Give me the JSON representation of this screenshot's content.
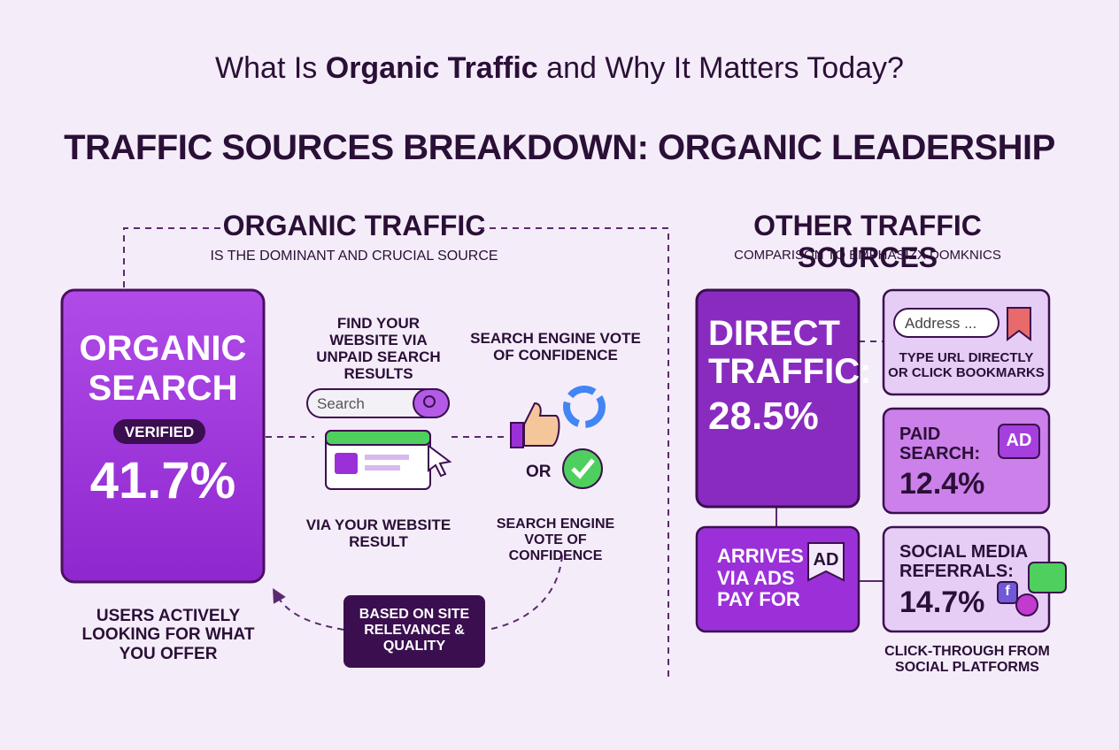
{
  "header": {
    "question_start": "What Is ",
    "question_bold": "Organic Traffic",
    "question_end": " and Why It Matters Today?",
    "title": "TRAFFIC SOURCES BREAKDOWN: ORGANIC LEADERSHIP"
  },
  "organic": {
    "heading": "ORGANIC TRAFFIC",
    "subheading": "IS THE DOMINANT AND CRUCIAL SOURCE",
    "card": {
      "label": "ORGANIC SEARCH",
      "badge": "VERIFIED",
      "value": "41.7%"
    },
    "caption": "USERS ACTIVELY LOOKING FOR WHAT YOU OFFER",
    "search_placeholder": "Search",
    "steps": [
      "FIND YOUR WEBSITE VIA UNPAID SEARCH RESULTS",
      "SEARCH ENGINE VOTE OF CONFIDENCE",
      "VIA YOUR WEBSITE RESULT",
      "SEARCH ENGINE VOTE OF CONFIDENCE"
    ],
    "or": "OR",
    "basis": "BASED ON SITE RELEVANCE & QUALITY"
  },
  "other": {
    "heading": "OTHER TRAFFIC SOURCES",
    "subheading": "COMPARISON TO EMPHASIZX DOMKNICS",
    "direct": {
      "label": "DIRECT TRAFFIC:",
      "value": "28.5%"
    },
    "address": {
      "placeholder": "Address ...",
      "caption": "TYPE URL DIRECTLY OR CLICK BOOKMARKS"
    },
    "paid": {
      "label": "PAID SEARCH:",
      "value": "12.4%",
      "icon": "AD"
    },
    "ads": {
      "label": "ARRIVES VIA ADS PAY FOR",
      "icon": "AD"
    },
    "social": {
      "label": "SOCIAL MEDIA REFERRALS:",
      "value": "14.7%",
      "icon": "f",
      "caption": "CLICK-THROUGH FROM SOCIAL PLATFORMS"
    }
  }
}
